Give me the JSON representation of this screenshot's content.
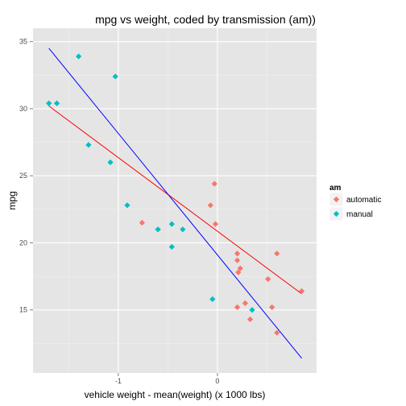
{
  "chart_data": {
    "type": "scatter",
    "title": "mpg vs weight, coded by transmission (am))",
    "xlabel": "vehicle weight - mean(weight) (x 1000 lbs)",
    "ylabel": "mpg",
    "xlim": [
      -1.86,
      1.0
    ],
    "ylim": [
      10.3,
      36.0
    ],
    "x_ticks": [
      -1,
      0
    ],
    "x_tick_labels": [
      "-1",
      "0"
    ],
    "y_ticks": [
      15,
      20,
      25,
      30,
      35
    ],
    "y_tick_labels": [
      "15",
      "20",
      "25",
      "30",
      "35"
    ],
    "grid": true,
    "legend": {
      "title": "am",
      "placement": "right"
    },
    "series": [
      {
        "name": "automatic",
        "color": "#f8766d",
        "points": [
          [
            -0.76,
            21.5
          ],
          [
            -0.6,
            21.0
          ],
          [
            -0.07,
            22.8
          ],
          [
            -0.03,
            24.4
          ],
          [
            -0.02,
            21.4
          ],
          [
            0.2,
            19.2
          ],
          [
            0.2,
            18.7
          ],
          [
            0.21,
            17.8
          ],
          [
            0.23,
            18.1
          ],
          [
            0.2,
            15.2
          ],
          [
            0.28,
            15.5
          ],
          [
            0.33,
            14.3
          ],
          [
            0.51,
            17.3
          ],
          [
            0.55,
            15.2
          ],
          [
            0.6,
            19.2
          ],
          [
            0.6,
            13.3
          ],
          [
            0.85,
            16.4
          ]
        ],
        "fit": {
          "x": [
            -1.7,
            0.85
          ],
          "y": [
            30.2,
            16.2
          ],
          "color": "#ff0000"
        }
      },
      {
        "name": "manual",
        "color": "#00bfc4",
        "points": [
          [
            -1.7,
            30.4
          ],
          [
            -1.62,
            30.4
          ],
          [
            -1.4,
            33.9
          ],
          [
            -1.03,
            32.4
          ],
          [
            -1.3,
            27.3
          ],
          [
            -1.08,
            26.0
          ],
          [
            -0.91,
            22.8
          ],
          [
            -0.6,
            21.0
          ],
          [
            -0.46,
            21.4
          ],
          [
            -0.35,
            21.0
          ],
          [
            -0.46,
            19.7
          ],
          [
            -0.05,
            15.8
          ],
          [
            0.35,
            15.0
          ]
        ],
        "fit": {
          "x": [
            -1.7,
            0.85
          ],
          "y": [
            34.5,
            11.4
          ],
          "color": "#0000ff"
        }
      }
    ]
  }
}
